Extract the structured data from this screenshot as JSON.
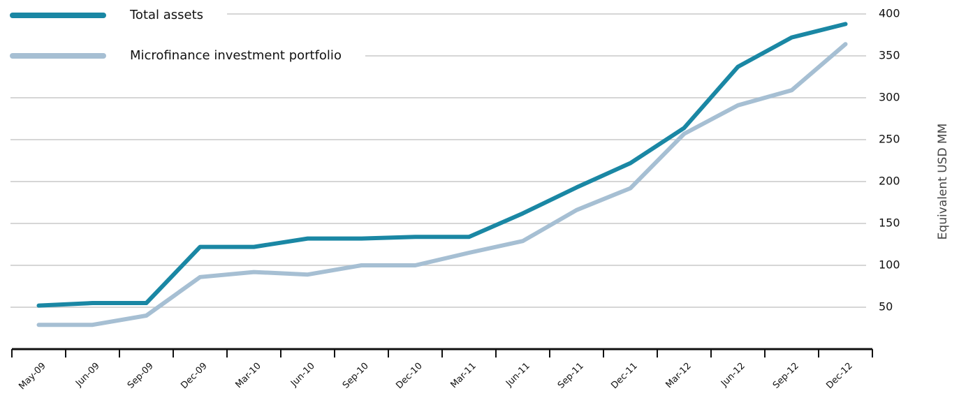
{
  "chart_data": {
    "type": "line",
    "categories": [
      "May-09",
      "Jun-09",
      "Sep-09",
      "Dec-09",
      "Mar-10",
      "Jun-10",
      "Sep-10",
      "Dec-10",
      "Mar-11",
      "Jun-11",
      "Sep-11",
      "Dec-11",
      "Mar-12",
      "Jun-12",
      "Sep-12",
      "Dec-12"
    ],
    "series": [
      {
        "name": "Total assets",
        "color": "#1a87a4",
        "values": [
          52,
          55,
          55,
          122,
          122,
          132,
          132,
          134,
          134,
          162,
          193,
          222,
          264,
          337,
          372,
          388
        ]
      },
      {
        "name": "Microfinance investment portfolio",
        "color": "#a6bfd3",
        "values": [
          29,
          29,
          40,
          86,
          92,
          89,
          100,
          100,
          115,
          129,
          166,
          192,
          257,
          291,
          309,
          364
        ]
      }
    ],
    "y_axis_label": "Equivalent USD MM",
    "ylim": [
      0,
      400
    ],
    "yticks": [
      50,
      100,
      150,
      200,
      250,
      300,
      350,
      400
    ],
    "grid": true,
    "legend": "top-left"
  }
}
